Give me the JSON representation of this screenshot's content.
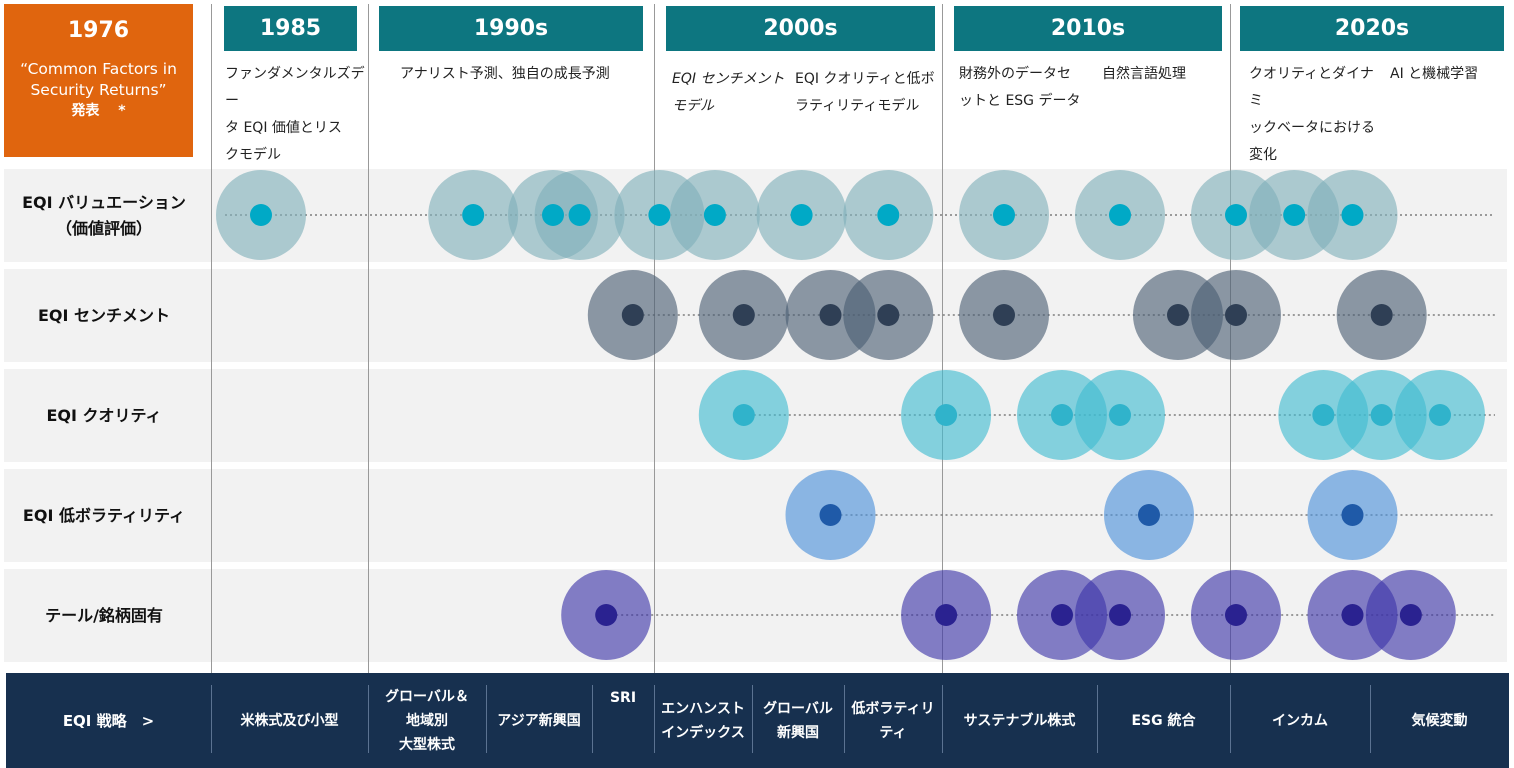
{
  "first": {
    "year": "1976",
    "paper": "“Common Factors in\nSecurity Returns”",
    "note": "発表　 *"
  },
  "periods": [
    {
      "label": "1985"
    },
    {
      "label": "1990s"
    },
    {
      "label": "2000s"
    },
    {
      "label": "2010s"
    },
    {
      "label": "2020s"
    }
  ],
  "milestones": [
    "ファンダメンタルズデー\nタ EQI 価値とリス\nクモデル",
    "アナリスト予測、独自の成長予測",
    "EQI センチメント\nモデル",
    "EQI クオリティと低ボ\nラティリティモデル",
    "財務外のデータセ\nットと ESG データ",
    "自然言語処理",
    "クオリティとダイナミ\nックベータにおける\n変化",
    "AI と機械学習"
  ],
  "rows": [
    {
      "label": "EQI バリュエーション\n（価値評価）",
      "color": "#7fb0b9",
      "dot": "#00a9c6"
    },
    {
      "label": "EQI センチメント",
      "color": "#4a5d73",
      "dot": "#2f3f55"
    },
    {
      "label": "EQI クオリティ",
      "color": "#3fbcd1",
      "dot": "#30b3cb"
    },
    {
      "label": "EQI 低ボラティリティ",
      "color": "#4a8fda",
      "dot": "#1f5aa8"
    },
    {
      "label": "テール/銘柄固有",
      "color": "#3b34a8",
      "dot": "#2a2290"
    }
  ],
  "chart_data": {
    "type": "timeline",
    "series": [
      {
        "name": "EQI バリュエーション（価値評価）",
        "values": [
          1985,
          1992,
          1995,
          1996,
          1999,
          2001,
          2004,
          2007,
          2011,
          2015,
          2019,
          2021,
          2023
        ]
      },
      {
        "name": "EQI センチメント",
        "values": [
          1998,
          2002,
          2005,
          2007,
          2011,
          2017,
          2019,
          2024
        ]
      },
      {
        "name": "EQI クオリティ",
        "values": [
          2002,
          2009,
          2013,
          2015,
          2022,
          2024,
          2026
        ]
      },
      {
        "name": "EQI 低ボラティリティ",
        "values": [
          2005,
          2016,
          2023
        ]
      },
      {
        "name": "テール/銘柄固有",
        "values": [
          1997,
          2009,
          2013,
          2015,
          2019,
          2023,
          2025
        ]
      }
    ]
  },
  "strategy": {
    "heading": "EQI 戦略　>",
    "items": [
      "米株式及び小型",
      "グローバル＆\n地域別\n大型株式",
      "アジア新興国",
      "SRI",
      "エンハンスト\nインデックス",
      "グローバル\n新興国",
      "低ボラティリ\nティ",
      "サステナブル株式",
      "ESG 統合",
      "インカム",
      "気候変動"
    ]
  }
}
